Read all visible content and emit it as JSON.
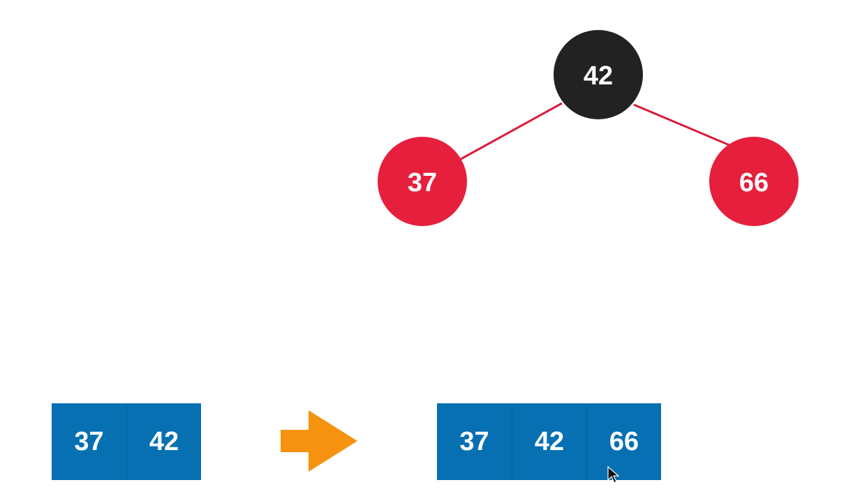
{
  "tree": {
    "root": {
      "value": "42",
      "color": "#222222"
    },
    "left": {
      "value": "37",
      "color": "#e61f3c"
    },
    "right": {
      "value": "66",
      "color": "#e61f3c"
    },
    "edge_color": "#d91b3a"
  },
  "array_before": {
    "cells": [
      "37",
      "42"
    ],
    "color": "#0670b2"
  },
  "array_after": {
    "cells": [
      "37",
      "42",
      "66"
    ],
    "color": "#0670b2"
  },
  "arrow": {
    "icon": "right-arrow-icon",
    "color": "#f5920f"
  }
}
